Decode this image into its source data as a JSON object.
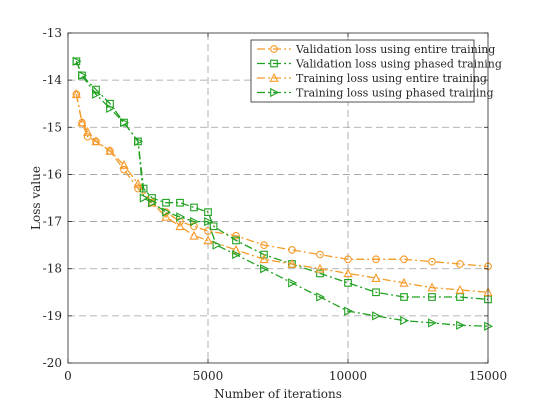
{
  "chart_data": {
    "type": "line",
    "title": "",
    "xlabel": "Number of iterations",
    "ylabel": "Loss value",
    "xlim": [
      0,
      15000
    ],
    "ylim": [
      -20,
      -13
    ],
    "xticks": [
      0,
      5000,
      10000,
      15000
    ],
    "yticks": [
      -20,
      -19,
      -18,
      -17,
      -16,
      -15,
      -14,
      -13
    ],
    "grid": true,
    "legend_position": "top-right",
    "series": [
      {
        "name": "Validation loss using entire training",
        "color": "#f59b2a",
        "marker": "circle",
        "dash": "dashdot",
        "points": [
          [
            300,
            -14.3
          ],
          [
            500,
            -14.9
          ],
          [
            700,
            -15.2
          ],
          [
            1000,
            -15.3
          ],
          [
            1500,
            -15.5
          ],
          [
            2000,
            -15.9
          ],
          [
            2500,
            -16.3
          ],
          [
            3000,
            -16.6
          ],
          [
            3500,
            -16.8
          ],
          [
            4000,
            -17.0
          ],
          [
            4500,
            -17.1
          ],
          [
            5000,
            -17.2
          ],
          [
            6000,
            -17.3
          ],
          [
            7000,
            -17.5
          ],
          [
            8000,
            -17.6
          ],
          [
            9000,
            -17.7
          ],
          [
            10000,
            -17.8
          ],
          [
            11000,
            -17.8
          ],
          [
            12000,
            -17.8
          ],
          [
            13000,
            -17.85
          ],
          [
            14000,
            -17.9
          ],
          [
            15000,
            -17.95
          ]
        ]
      },
      {
        "name": "Validation loss using phased training",
        "color": "#21a121",
        "marker": "square",
        "dash": "dashdot",
        "points": [
          [
            300,
            -13.6
          ],
          [
            500,
            -13.9
          ],
          [
            1000,
            -14.2
          ],
          [
            1500,
            -14.5
          ],
          [
            2000,
            -14.9
          ],
          [
            2500,
            -15.3
          ],
          [
            2700,
            -16.3
          ],
          [
            3000,
            -16.5
          ],
          [
            3500,
            -16.6
          ],
          [
            4000,
            -16.6
          ],
          [
            4500,
            -16.7
          ],
          [
            5000,
            -16.8
          ],
          [
            5200,
            -17.1
          ],
          [
            6000,
            -17.4
          ],
          [
            7000,
            -17.7
          ],
          [
            8000,
            -17.9
          ],
          [
            9000,
            -18.1
          ],
          [
            10000,
            -18.3
          ],
          [
            11000,
            -18.5
          ],
          [
            12000,
            -18.6
          ],
          [
            13000,
            -18.6
          ],
          [
            14000,
            -18.6
          ],
          [
            15000,
            -18.65
          ]
        ]
      },
      {
        "name": "Training loss using entire training",
        "color": "#f59b2a",
        "marker": "triangle-up",
        "dash": "dashdot",
        "points": [
          [
            300,
            -14.3
          ],
          [
            500,
            -14.9
          ],
          [
            700,
            -15.1
          ],
          [
            1000,
            -15.3
          ],
          [
            1500,
            -15.5
          ],
          [
            2000,
            -15.8
          ],
          [
            2500,
            -16.2
          ],
          [
            3000,
            -16.6
          ],
          [
            3500,
            -16.9
          ],
          [
            4000,
            -17.1
          ],
          [
            4500,
            -17.3
          ],
          [
            5000,
            -17.4
          ],
          [
            6000,
            -17.6
          ],
          [
            7000,
            -17.8
          ],
          [
            8000,
            -17.9
          ],
          [
            9000,
            -18.0
          ],
          [
            10000,
            -18.1
          ],
          [
            11000,
            -18.2
          ],
          [
            12000,
            -18.3
          ],
          [
            13000,
            -18.4
          ],
          [
            14000,
            -18.45
          ],
          [
            15000,
            -18.5
          ]
        ]
      },
      {
        "name": "Training loss using phased training",
        "color": "#21a121",
        "marker": "triangle-right",
        "dash": "dashdot",
        "points": [
          [
            300,
            -13.6
          ],
          [
            500,
            -13.9
          ],
          [
            1000,
            -14.3
          ],
          [
            1500,
            -14.6
          ],
          [
            2000,
            -14.9
          ],
          [
            2500,
            -15.3
          ],
          [
            2700,
            -16.5
          ],
          [
            3000,
            -16.6
          ],
          [
            3500,
            -16.8
          ],
          [
            4000,
            -16.9
          ],
          [
            4500,
            -17.0
          ],
          [
            5000,
            -17.0
          ],
          [
            5300,
            -17.5
          ],
          [
            6000,
            -17.7
          ],
          [
            7000,
            -18.0
          ],
          [
            8000,
            -18.3
          ],
          [
            9000,
            -18.6
          ],
          [
            10000,
            -18.9
          ],
          [
            11000,
            -19.0
          ],
          [
            12000,
            -19.1
          ],
          [
            13000,
            -19.15
          ],
          [
            14000,
            -19.2
          ],
          [
            15000,
            -19.22
          ]
        ]
      }
    ]
  }
}
